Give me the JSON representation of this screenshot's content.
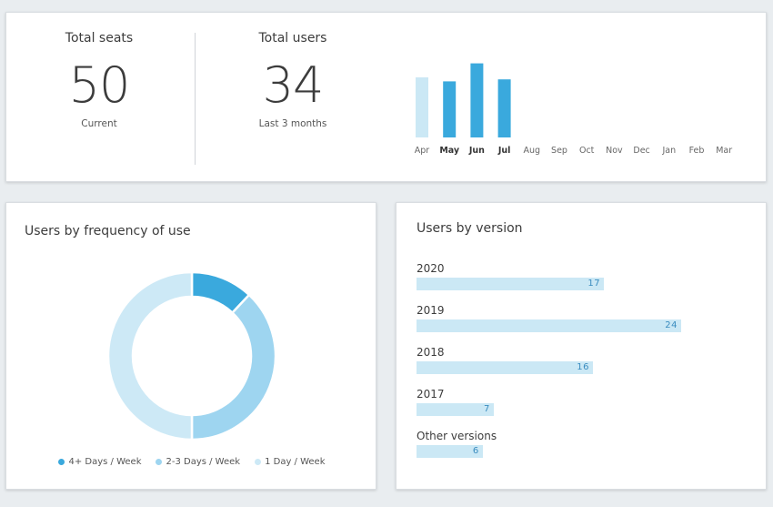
{
  "summary": {
    "seats": {
      "title": "Total seats",
      "value": "50",
      "sub": "Current"
    },
    "users": {
      "title": "Total users",
      "value": "34",
      "sub": "Last 3 months"
    }
  },
  "frequency": {
    "title": "Users by frequency of use",
    "legend": [
      {
        "label": "4+ Days / Week",
        "color": "#3aa9dd"
      },
      {
        "label": "2-3 Days / Week",
        "color": "#9ed5f0"
      },
      {
        "label": "1 Day / Week",
        "color": "#cde9f6"
      }
    ]
  },
  "version": {
    "title": "Users by version"
  },
  "chart_data": [
    {
      "type": "bar",
      "categories": [
        "Apr",
        "May",
        "Jun",
        "Jul",
        "Aug",
        "Sep",
        "Oct",
        "Nov",
        "Dec",
        "Jan",
        "Feb",
        "Mar"
      ],
      "values": [
        30,
        28,
        37,
        29,
        null,
        null,
        null,
        null,
        null,
        null,
        null,
        null
      ],
      "highlighted": [
        "May",
        "Jun",
        "Jul"
      ],
      "colors": {
        "highlight": "#3aa9dd",
        "normal": "#cbe8f5"
      }
    },
    {
      "type": "pie",
      "donut": true,
      "labels": [
        "4+ Days / Week",
        "2-3 Days / Week",
        "1 Day / Week"
      ],
      "values": [
        12,
        38,
        50
      ],
      "colors": [
        "#3aa9dd",
        "#9ed5f0",
        "#cde9f6"
      ]
    },
    {
      "type": "bar",
      "orientation": "horizontal",
      "categories": [
        "2020",
        "2019",
        "2018",
        "2017",
        "Other versions"
      ],
      "values": [
        17,
        24,
        16,
        7,
        6
      ],
      "xlim": [
        0,
        24
      ],
      "color": "#cbe8f5"
    }
  ]
}
